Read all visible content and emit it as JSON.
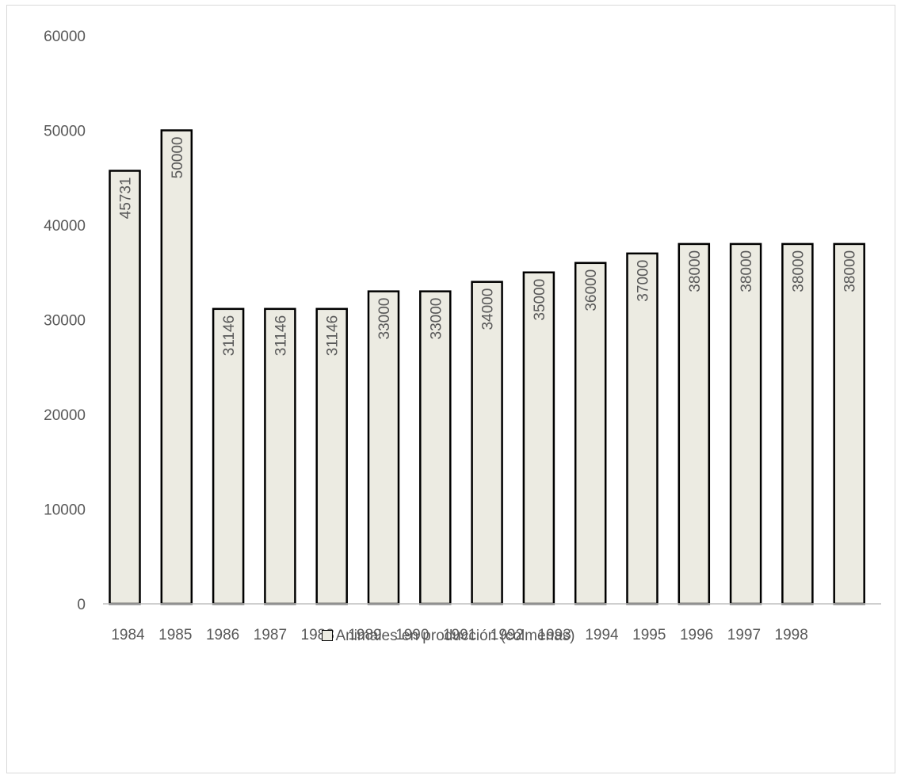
{
  "chart_data": {
    "type": "bar",
    "x_tick_labels": [
      "1984",
      "1985",
      "1986",
      "1987",
      "1988",
      "1989",
      "1990",
      "1991",
      "1992",
      "1993",
      "1994",
      "1995",
      "1996",
      "1997",
      "1998"
    ],
    "values": [
      45731,
      50000,
      31146,
      31146,
      31146,
      33000,
      33000,
      34000,
      35000,
      36000,
      37000,
      38000,
      38000,
      38000,
      38000
    ],
    "data_labels": [
      "45731",
      "50000",
      "31146",
      "31146",
      "31146",
      "33000",
      "33000",
      "34000",
      "35000",
      "36000",
      "37000",
      "38000",
      "38000",
      "38000",
      "38000"
    ],
    "y_ticks": [
      "0",
      "10000",
      "20000",
      "30000",
      "40000",
      "50000",
      "60000"
    ],
    "ylim": [
      0,
      60000
    ],
    "series": [
      {
        "name": "Animales en producción (colmenas)",
        "values": [
          45731,
          50000,
          31146,
          31146,
          31146,
          33000,
          33000,
          34000,
          35000,
          36000,
          37000,
          38000,
          38000,
          38000,
          38000
        ]
      }
    ],
    "legend_position": "bottom",
    "grid": false,
    "colors": {
      "bar_fill": "#ecebe2",
      "bar_stroke": "#000000",
      "axis": "#bfbfbf",
      "text": "#595959"
    }
  }
}
